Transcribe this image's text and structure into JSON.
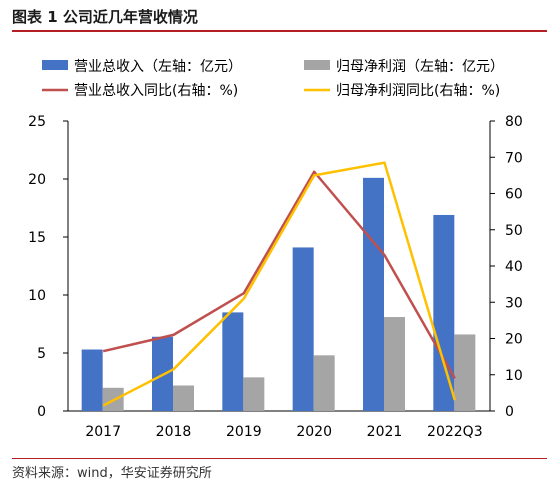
{
  "header": {
    "title": "图表 1 公司近几年营收情况"
  },
  "footer": {
    "source": "资料来源：wind，华安证券研究所"
  },
  "colors": {
    "revenue": "#4472c4",
    "profit": "#a5a5a5",
    "revenue_yoy": "#c0504d",
    "profit_yoy": "#ffc000",
    "accent": "#b51f24"
  },
  "chart_data": {
    "type": "bar",
    "categories": [
      "2017",
      "2018",
      "2019",
      "2020",
      "2021",
      "2022Q3"
    ],
    "series": [
      {
        "name": "营业总收入（左轴：亿元）",
        "kind": "bar",
        "axis": "left",
        "values": [
          5.3,
          6.4,
          8.5,
          14.1,
          20.1,
          16.9
        ]
      },
      {
        "name": "归母净利润（左轴：亿元）",
        "kind": "bar",
        "axis": "left",
        "values": [
          2.0,
          2.2,
          2.9,
          4.8,
          8.1,
          6.6
        ]
      },
      {
        "name": "营业总收入同比(右轴：%)",
        "kind": "line",
        "axis": "right",
        "values": [
          16.5,
          21.0,
          32.5,
          66.0,
          43.0,
          9.0
        ]
      },
      {
        "name": "归母净利润同比(右轴：%)",
        "kind": "line",
        "axis": "right",
        "values": [
          1.5,
          11.5,
          31.0,
          65.0,
          68.5,
          3.0
        ]
      }
    ],
    "left_axis": {
      "min": 0,
      "max": 25,
      "ticks": [
        0,
        5,
        10,
        15,
        20,
        25
      ]
    },
    "right_axis": {
      "min": 0,
      "max": 80,
      "ticks": [
        0,
        10,
        20,
        30,
        40,
        50,
        60,
        70,
        80
      ]
    },
    "legend_position": "top",
    "grid": false
  }
}
